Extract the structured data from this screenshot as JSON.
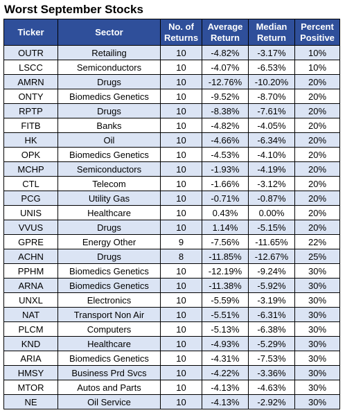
{
  "title": "Worst September Stocks",
  "columns": [
    {
      "line1": "Ticker",
      "line2": ""
    },
    {
      "line1": "Sector",
      "line2": ""
    },
    {
      "line1": "No. of",
      "line2": "Returns"
    },
    {
      "line1": "Average",
      "line2": "Return"
    },
    {
      "line1": "Median",
      "line2": "Return"
    },
    {
      "line1": "Percent",
      "line2": "Positive"
    }
  ],
  "rows": [
    [
      "OUTR",
      "Retailing",
      "10",
      "-4.82%",
      "-3.17%",
      "10%"
    ],
    [
      "LSCC",
      "Semiconductors",
      "10",
      "-4.07%",
      "-6.53%",
      "10%"
    ],
    [
      "AMRN",
      "Drugs",
      "10",
      "-12.76%",
      "-10.20%",
      "20%"
    ],
    [
      "ONTY",
      "Biomedics Genetics",
      "10",
      "-9.52%",
      "-8.70%",
      "20%"
    ],
    [
      "RPTP",
      "Drugs",
      "10",
      "-8.38%",
      "-7.61%",
      "20%"
    ],
    [
      "FITB",
      "Banks",
      "10",
      "-4.82%",
      "-4.05%",
      "20%"
    ],
    [
      "HK",
      "Oil",
      "10",
      "-4.66%",
      "-6.34%",
      "20%"
    ],
    [
      "OPK",
      "Biomedics Genetics",
      "10",
      "-4.53%",
      "-4.10%",
      "20%"
    ],
    [
      "MCHP",
      "Semiconductors",
      "10",
      "-1.93%",
      "-4.19%",
      "20%"
    ],
    [
      "CTL",
      "Telecom",
      "10",
      "-1.66%",
      "-3.12%",
      "20%"
    ],
    [
      "PCG",
      "Utility Gas",
      "10",
      "-0.71%",
      "-0.87%",
      "20%"
    ],
    [
      "UNIS",
      "Healthcare",
      "10",
      "0.43%",
      "0.00%",
      "20%"
    ],
    [
      "VVUS",
      "Drugs",
      "10",
      "1.14%",
      "-5.15%",
      "20%"
    ],
    [
      "GPRE",
      "Energy Other",
      "9",
      "-7.56%",
      "-11.65%",
      "22%"
    ],
    [
      "ACHN",
      "Drugs",
      "8",
      "-11.85%",
      "-12.67%",
      "25%"
    ],
    [
      "PPHM",
      "Biomedics Genetics",
      "10",
      "-12.19%",
      "-9.24%",
      "30%"
    ],
    [
      "ARNA",
      "Biomedics Genetics",
      "10",
      "-11.38%",
      "-5.92%",
      "30%"
    ],
    [
      "UNXL",
      "Electronics",
      "10",
      "-5.59%",
      "-3.19%",
      "30%"
    ],
    [
      "NAT",
      "Transport Non Air",
      "10",
      "-5.51%",
      "-6.31%",
      "30%"
    ],
    [
      "PLCM",
      "Computers",
      "10",
      "-5.13%",
      "-6.38%",
      "30%"
    ],
    [
      "KND",
      "Healthcare",
      "10",
      "-4.93%",
      "-5.29%",
      "30%"
    ],
    [
      "ARIA",
      "Biomedics Genetics",
      "10",
      "-4.31%",
      "-7.53%",
      "30%"
    ],
    [
      "HMSY",
      "Business Prd Svcs",
      "10",
      "-4.22%",
      "-3.36%",
      "30%"
    ],
    [
      "MTOR",
      "Autos and Parts",
      "10",
      "-4.13%",
      "-4.63%",
      "30%"
    ],
    [
      "NE",
      "Oil Service",
      "10",
      "-4.13%",
      "-2.92%",
      "30%"
    ]
  ],
  "colors": {
    "header_bg": "#2F4F9A",
    "header_text": "#FFFFFF",
    "row_alt_bg": "#DBE4F4",
    "row_bg": "#FFFFFF",
    "border": "#000000"
  }
}
